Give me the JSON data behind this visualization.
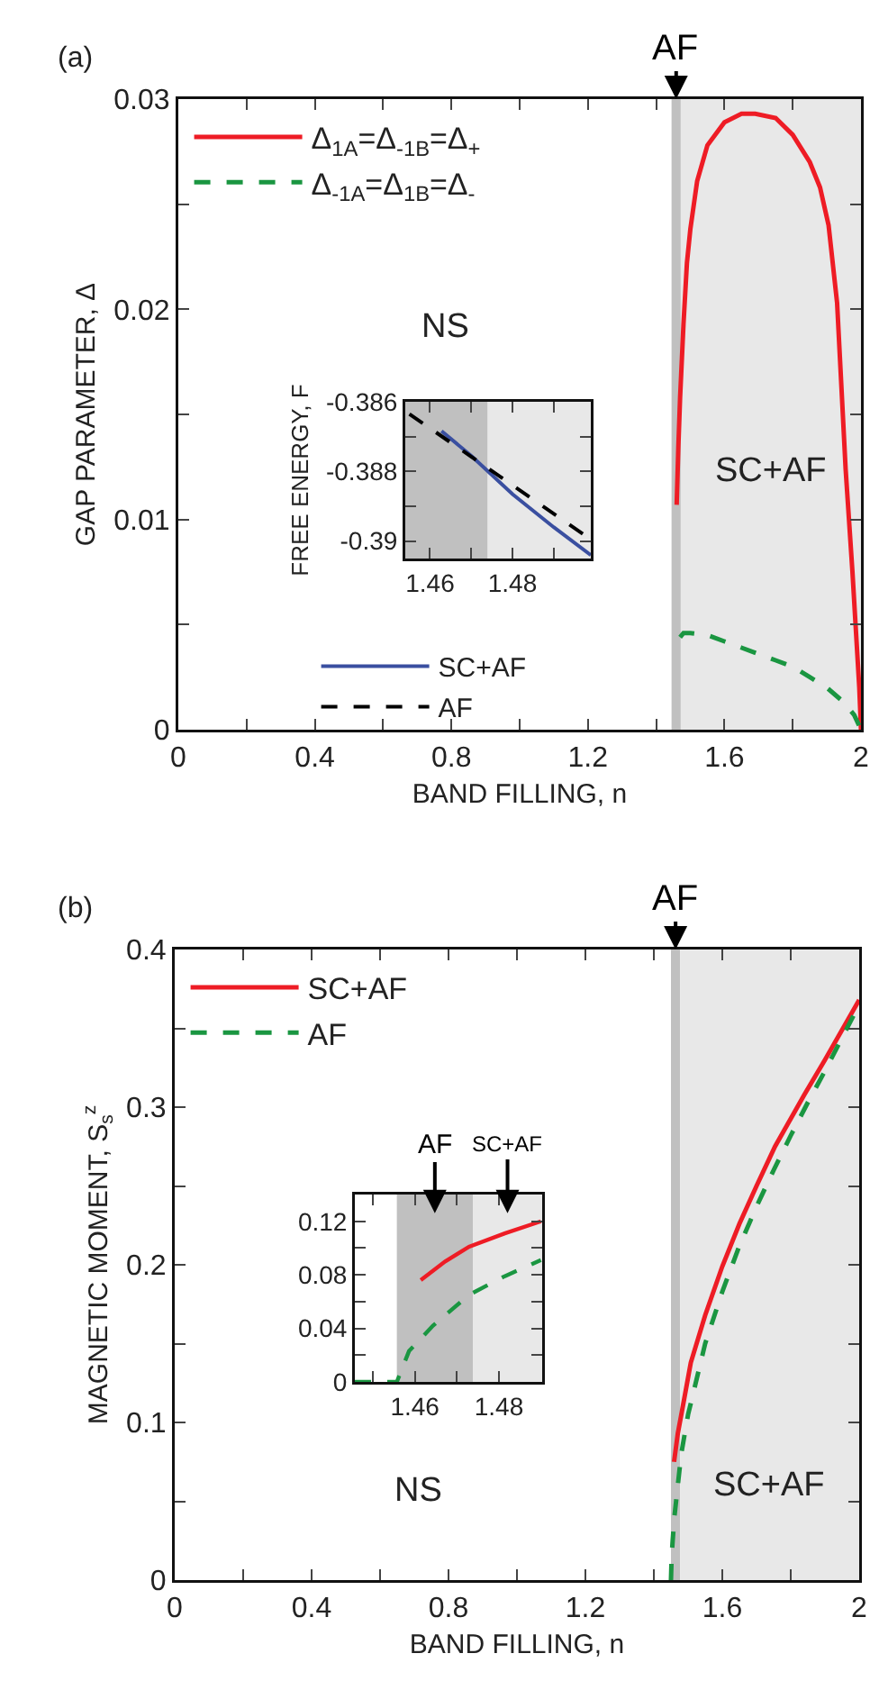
{
  "chart_data": [
    {
      "type": "line",
      "xlabel": "BAND FILLING, n",
      "ylabel": "GAP PARAMETER, Δ",
      "xlim": [
        0,
        2
      ],
      "ylim": [
        0,
        0.03
      ],
      "xticks": [
        0,
        {
          "value": 0.2,
          "label": null
        },
        0.4,
        {
          "value": 0.6,
          "label": null
        },
        0.8,
        {
          "value": 1.0,
          "label": null
        },
        1.2,
        {
          "value": 1.4,
          "label": null
        },
        1.6,
        {
          "value": 1.8,
          "label": null
        },
        2
      ],
      "yticks": [
        0,
        {
          "value": 0.005,
          "label": null
        },
        0.01,
        {
          "value": 0.015,
          "label": null
        },
        0.02,
        {
          "value": 0.025,
          "label": null
        },
        0.03
      ],
      "legend": "top left",
      "bands": [
        {
          "axis": "x",
          "from": 1.445,
          "to": 1.472,
          "color": "#c0c0c0",
          "label": "AF"
        },
        {
          "axis": "x",
          "from": 1.472,
          "to": 2,
          "color": "#e8e8e8",
          "label": "SC+AF"
        }
      ],
      "annotations": [
        "(a)",
        "NS"
      ],
      "series": [
        {
          "name": "Δ$_{1A}$=Δ$_{-1B}$=Δ$_{+}$",
          "color": "#ee1c25",
          "line_style": "solid",
          "x": [
            1.46,
            1.465,
            1.47,
            1.48,
            1.49,
            1.5,
            1.52,
            1.55,
            1.6,
            1.65,
            1.69,
            1.75,
            1.8,
            1.85,
            1.88,
            1.905,
            1.93,
            1.955,
            1.975,
            1.995,
            2
          ],
          "values": [
            0.0107,
            0.0135,
            0.0158,
            0.0193,
            0.0222,
            0.0238,
            0.0261,
            0.0278,
            0.0289,
            0.0293,
            0.0293,
            0.0291,
            0.0283,
            0.027,
            0.0258,
            0.024,
            0.0203,
            0.0124,
            0.0075,
            0.002,
            0
          ]
        },
        {
          "name": "Δ$_{-1A}$=Δ$_{1B}$=Δ$_{-}$",
          "color": "#1a9641",
          "line_style": "dashed",
          "x": [
            1.47,
            1.48,
            1.5,
            1.55,
            1.6,
            1.65,
            1.7,
            1.75,
            1.8,
            1.85,
            1.9,
            1.95,
            1.98,
            2
          ],
          "values": [
            0.0044,
            0.0046,
            0.0046,
            0.0045,
            0.0042,
            0.0039,
            0.0036,
            0.0033,
            0.003,
            0.0025,
            0.002,
            0.0013,
            0.0007,
            0
          ]
        }
      ]
    },
    {
      "type": "line",
      "ylabel": "FREE ENERGY, F",
      "xlim": [
        1.454,
        1.499
      ],
      "ylim": [
        -0.3905,
        -0.386
      ],
      "xticks": [
        1.46,
        {
          "value": 1.47,
          "label": null
        },
        1.48,
        {
          "value": 1.49,
          "label": null
        }
      ],
      "yticks": [
        -0.39,
        {
          "value": -0.389,
          "label": null
        },
        -0.388,
        {
          "value": -0.387,
          "label": null
        },
        -0.386
      ],
      "legend": "bottom",
      "bands": [
        {
          "axis": "x",
          "from": 1.454,
          "to": 1.474,
          "color": "#c0c0c0"
        },
        {
          "axis": "x",
          "from": 1.474,
          "to": 1.499,
          "color": "#e8e8e8"
        }
      ],
      "series": [
        {
          "name": "SC+AF",
          "color": "#3a4fa0",
          "line_style": "solid",
          "x": [
            1.4628,
            1.47,
            1.48,
            1.49,
            1.499
          ],
          "values": [
            -0.38684,
            -0.38755,
            -0.38865,
            -0.3896,
            -0.3904
          ]
        },
        {
          "name": "AF",
          "color": "#000000",
          "line_style": "dashed",
          "x": [
            1.455,
            1.499
          ],
          "values": [
            -0.38635,
            -0.38995
          ]
        }
      ]
    },
    {
      "type": "line",
      "xlabel": "BAND FILLING, n",
      "ylabel": "MAGNETIC MOMENT, S$_{s}$$^{z}$",
      "xlim": [
        0,
        2
      ],
      "ylim": [
        0,
        0.4
      ],
      "xticks": [
        0,
        {
          "value": 0.2,
          "label": null
        },
        0.4,
        {
          "value": 0.6,
          "label": null
        },
        0.8,
        {
          "value": 1.0,
          "label": null
        },
        1.2,
        {
          "value": 1.4,
          "label": null
        },
        1.6,
        {
          "value": 1.8,
          "label": null
        },
        2
      ],
      "yticks": [
        0,
        {
          "value": 0.05,
          "label": null
        },
        0.1,
        {
          "value": 0.15,
          "label": null
        },
        0.2,
        {
          "value": 0.25,
          "label": null
        },
        0.3,
        {
          "value": 0.35,
          "label": null
        },
        0.4
      ],
      "legend": "top left",
      "bands": [
        {
          "axis": "x",
          "from": 1.45,
          "to": 1.477,
          "color": "#c0c0c0",
          "label": "AF"
        },
        {
          "axis": "x",
          "from": 1.477,
          "to": 2,
          "color": "#e8e8e8",
          "label": "SC+AF"
        }
      ],
      "annotations": [
        "(b)",
        "NS"
      ],
      "series": [
        {
          "name": "SC+AF",
          "color": "#ee1c25",
          "line_style": "solid",
          "x": [
            1.459,
            1.47,
            1.482,
            1.508,
            1.55,
            1.6,
            1.65,
            1.7,
            1.754,
            1.84,
            1.9,
            1.95,
            2
          ],
          "values": [
            0.075,
            0.093,
            0.107,
            0.138,
            0.168,
            0.199,
            0.226,
            0.25,
            0.275,
            0.308,
            0.33,
            0.349,
            0.368
          ]
        },
        {
          "name": "AF",
          "color": "#1a9641",
          "line_style": "dashed",
          "x": [
            1.45,
            1.452,
            1.455,
            1.46,
            1.465,
            1.48,
            1.5,
            1.55,
            1.6,
            1.65,
            1.7,
            1.75,
            1.8,
            1.85,
            1.9,
            1.95,
            2
          ],
          "values": [
            0,
            0.015,
            0.025,
            0.04,
            0.05,
            0.08,
            0.105,
            0.15,
            0.183,
            0.212,
            0.237,
            0.26,
            0.282,
            0.303,
            0.323,
            0.344,
            0.365
          ]
        }
      ]
    },
    {
      "type": "line",
      "xlim": [
        1.4457,
        1.4903
      ],
      "ylim": [
        0,
        0.14
      ],
      "xticks": [
        {
          "value": 1.45,
          "label": null
        },
        1.46,
        {
          "value": 1.47,
          "label": null
        },
        1.48,
        {
          "value": 1.49,
          "label": null
        }
      ],
      "yticks": [
        0,
        {
          "value": 0.02,
          "label": null
        },
        0.04,
        {
          "value": 0.06,
          "label": null
        },
        0.08,
        {
          "value": 0.1,
          "label": null
        },
        0.12
      ],
      "bands": [
        {
          "axis": "x",
          "from": 1.4557,
          "to": 1.4738,
          "color": "#c0c0c0",
          "label": "AF"
        },
        {
          "axis": "x",
          "from": 1.4738,
          "to": 1.4903,
          "color": "#e8e8e8",
          "label": "SC+AF"
        }
      ],
      "series": [
        {
          "color": "#ee1c25",
          "line_style": "solid",
          "x": [
            1.4614,
            1.4672,
            1.4729,
            1.4814,
            1.49
          ],
          "values": [
            0.076,
            0.09,
            0.101,
            0.111,
            0.12
          ]
        },
        {
          "color": "#1a9641",
          "line_style": "dashed",
          "x": [
            1.4457,
            1.4557,
            1.4586,
            1.4643,
            1.4729,
            1.4814,
            1.49
          ],
          "values": [
            0,
            0,
            0.023,
            0.042,
            0.065,
            0.079,
            0.091
          ]
        }
      ]
    }
  ]
}
